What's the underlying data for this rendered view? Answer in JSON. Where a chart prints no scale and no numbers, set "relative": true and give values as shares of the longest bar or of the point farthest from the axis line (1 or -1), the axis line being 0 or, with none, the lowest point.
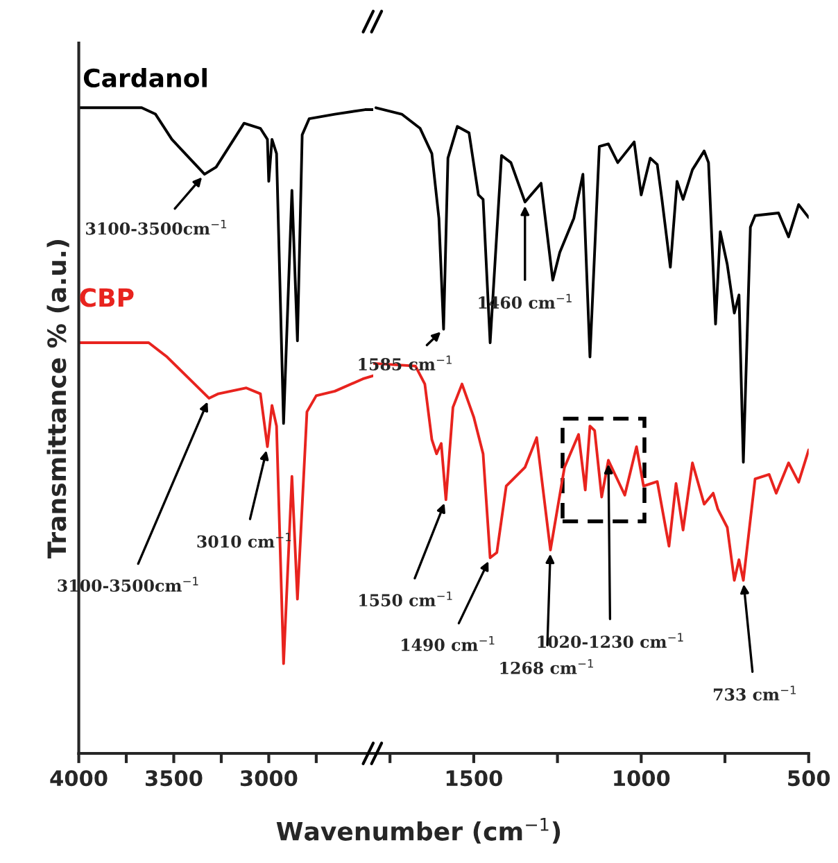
{
  "chart_data": [
    {
      "type": "line",
      "relative": true,
      "ylabel": "Transmittance % (a.u.)",
      "xlabel": "Wavenumber (cm$^{−1}$)",
      "tick_labels": "x",
      "xlim": [
        4000,
        2450
      ],
      "xticks": [
        4000,
        {
          "value": 3750,
          "label": null
        },
        3500,
        {
          "value": 3250,
          "label": null
        },
        3000,
        {
          "value": 2750,
          "label": null
        }
      ],
      "series": [
        {
          "name": "Cardanol",
          "color": "#000000",
          "x": [
            4000,
            3669,
            3596,
            3510,
            3338,
            3277,
            3130,
            3044,
            3007,
            3000,
            2983,
            2959,
            2922,
            2878,
            2849,
            2824,
            2787,
            2652,
            2493,
            2450
          ],
          "values": [
            1.0,
            1.0,
            0.99,
            0.951,
            0.897,
            0.908,
            0.976,
            0.968,
            0.951,
            0.886,
            0.951,
            0.929,
            0.511,
            0.872,
            0.639,
            0.958,
            0.983,
            0.99,
            0.997,
            0.997
          ]
        },
        {
          "name": "CBP",
          "color": "#e8231e",
          "x": [
            4000,
            3632,
            3535,
            3314,
            3265,
            3118,
            3044,
            3007,
            2983,
            2959,
            2922,
            2878,
            2849,
            2799,
            2750,
            2652,
            2505,
            2450
          ],
          "values": [
            0.636,
            0.636,
            0.614,
            0.55,
            0.557,
            0.566,
            0.557,
            0.475,
            0.539,
            0.507,
            0.139,
            0.429,
            0.239,
            0.529,
            0.554,
            0.561,
            0.58,
            0.585
          ]
        }
      ],
      "annotations": [
        {
          "text": "3100-3500cm$^{−1}$",
          "x": 3338,
          "y": 0.897
        },
        {
          "text": "3100-3500cm$^{−1}$",
          "x": 3314,
          "y": 0.55
        },
        {
          "text": "3010 cm$^{−1}$",
          "x": 3007,
          "y": 0.475
        }
      ]
    },
    {
      "type": "line",
      "relative": true,
      "tick_labels": "x",
      "xlim": [
        1800,
        500
      ],
      "xticks": [
        {
          "value": 1750,
          "label": null
        },
        1500,
        {
          "value": 1250,
          "label": null
        },
        1000,
        {
          "value": 750,
          "label": null
        },
        500
      ],
      "series": [
        {
          "color": "#000000",
          "x": [
            1792,
            1715,
            1660,
            1625,
            1604,
            1590,
            1577,
            1549,
            1514,
            1486,
            1472,
            1451,
            1417,
            1389,
            1347,
            1299,
            1264,
            1243,
            1201,
            1174,
            1153,
            1125,
            1098,
            1070,
            1021,
            1000,
            973,
            952,
            938,
            913,
            893,
            875,
            847,
            812,
            799,
            778,
            764,
            743,
            722,
            708,
            695,
            674,
            660,
            590,
            560,
            530,
            500
          ],
          "values": [
            1.0,
            0.99,
            0.968,
            0.929,
            0.829,
            0.657,
            0.922,
            0.971,
            0.961,
            0.865,
            0.858,
            0.636,
            0.926,
            0.915,
            0.854,
            0.883,
            0.733,
            0.776,
            0.829,
            0.897,
            0.614,
            0.94,
            0.944,
            0.915,
            0.947,
            0.865,
            0.922,
            0.912,
            0.858,
            0.753,
            0.886,
            0.858,
            0.904,
            0.933,
            0.915,
            0.665,
            0.808,
            0.757,
            0.682,
            0.71,
            0.451,
            0.815,
            0.833,
            0.837,
            0.8,
            0.85,
            0.83
          ]
        },
        {
          "color": "#e8231e",
          "x": [
            1799,
            1674,
            1646,
            1625,
            1611,
            1597,
            1583,
            1562,
            1535,
            1500,
            1472,
            1451,
            1431,
            1403,
            1347,
            1312,
            1271,
            1229,
            1187,
            1167,
            1153,
            1139,
            1118,
            1098,
            1049,
            1014,
            993,
            952,
            917,
            896,
            875,
            847,
            812,
            785,
            771,
            743,
            722,
            708,
            695,
            660,
            618,
            597,
            560,
            530,
            500
          ],
          "values": [
            0.604,
            0.6,
            0.572,
            0.486,
            0.464,
            0.48,
            0.393,
            0.536,
            0.572,
            0.521,
            0.464,
            0.303,
            0.311,
            0.414,
            0.443,
            0.489,
            0.315,
            0.443,
            0.494,
            0.408,
            0.507,
            0.5,
            0.397,
            0.454,
            0.4,
            0.475,
            0.414,
            0.421,
            0.321,
            0.418,
            0.346,
            0.45,
            0.386,
            0.403,
            0.378,
            0.35,
            0.268,
            0.3,
            0.268,
            0.425,
            0.432,
            0.403,
            0.45,
            0.42,
            0.47
          ]
        }
      ],
      "annotations": [
        {
          "text": "1585 cm$^{−1}$",
          "x": 1590,
          "y": 0.657
        },
        {
          "text": "1460 cm$^{−1}$",
          "x": 1347,
          "y": 0.854
        },
        {
          "text": "1550 cm$^{−1}$",
          "x": 1583,
          "y": 0.393
        },
        {
          "text": "1490 cm$^{−1}$",
          "x": 1451,
          "y": 0.303
        },
        {
          "text": "1268 cm$^{−1}$",
          "x": 1271,
          "y": 0.315
        },
        {
          "text": "1020-1230 cm$^{−1}$",
          "x": 1098,
          "y": 0.454
        },
        {
          "text": "733 cm$^{−1}$",
          "x": 695,
          "y": 0.268
        }
      ]
    }
  ]
}
